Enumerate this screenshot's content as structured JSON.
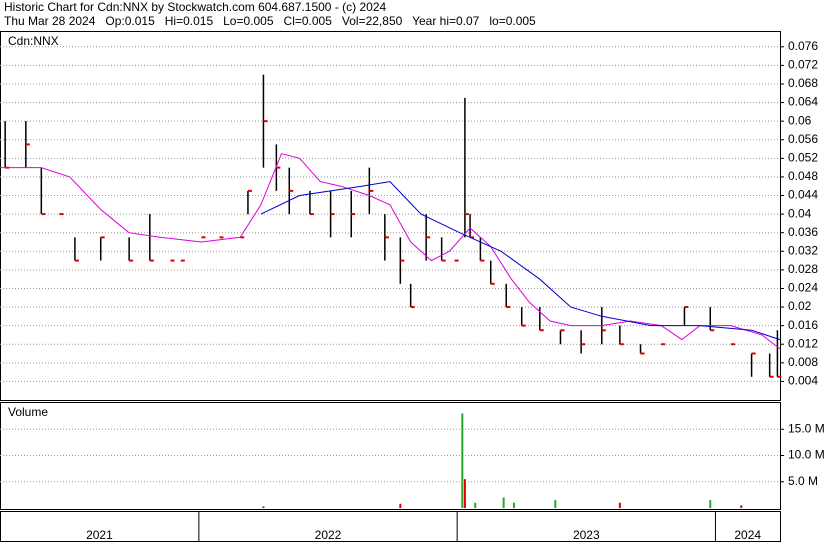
{
  "chart_data": {
    "type": "ohlc",
    "title": "Historic Chart for Cdn:NNX by Stockwatch.com 604.687.1500 - (c) 2024",
    "subtitle": "Thu Mar 28 2024   Op:0.015   Hi=0.015   Lo=0.005   Cl=0.005   Vol=22,850   Year hi=0.07   lo=0.005",
    "symbol_label": "Cdn:NNX",
    "volume_label": "Volume",
    "xlim": [
      2021.23,
      2024.25
    ],
    "x_years": [
      {
        "value": 2021,
        "label": "2021"
      },
      {
        "value": 2022,
        "label": "2022"
      },
      {
        "value": 2023,
        "label": "2023"
      },
      {
        "value": 2024,
        "label": "2024"
      }
    ],
    "ylim": [
      0,
      0.0794
    ],
    "yticks": [
      0.004,
      0.008,
      0.012,
      0.016,
      0.02,
      0.024,
      0.028,
      0.032,
      0.036,
      0.04,
      0.044,
      0.048,
      0.052,
      0.056,
      0.06,
      0.064,
      0.068,
      0.072,
      0.076
    ],
    "grid": true,
    "bar_color": "#000000",
    "close_color": "#dd0000",
    "x": [
      2021.25,
      2021.33,
      2021.39,
      2021.46,
      2021.52,
      2021.62,
      2021.73,
      2021.81,
      2021.89,
      2021.93,
      2022.01,
      2022.08,
      2022.16,
      2022.19,
      2022.25,
      2022.3,
      2022.35,
      2022.43,
      2022.51,
      2022.59,
      2022.66,
      2022.72,
      2022.78,
      2022.82,
      2022.88,
      2022.94,
      2022.99,
      2023.03,
      2023.05,
      2023.09,
      2023.13,
      2023.19,
      2023.25,
      2023.32,
      2023.4,
      2023.48,
      2023.56,
      2023.63,
      2023.71,
      2023.79,
      2023.88,
      2023.98,
      2024.06,
      2024.14,
      2024.21,
      2024.24
    ],
    "high": [
      0.06,
      0.06,
      0.05,
      0.04,
      0.035,
      0.035,
      0.035,
      0.04,
      0.03,
      0.03,
      0.035,
      0.035,
      0.035,
      0.045,
      0.07,
      0.055,
      0.05,
      0.045,
      0.045,
      0.045,
      0.05,
      0.04,
      0.035,
      0.025,
      0.04,
      0.035,
      0.03,
      0.065,
      0.04,
      0.035,
      0.03,
      0.025,
      0.02,
      0.02,
      0.015,
      0.015,
      0.02,
      0.016,
      0.012,
      0.012,
      0.02,
      0.02,
      0.012,
      0.01,
      0.01,
      0.015
    ],
    "low": [
      0.05,
      0.05,
      0.04,
      0.04,
      0.03,
      0.03,
      0.03,
      0.03,
      0.03,
      0.03,
      0.035,
      0.035,
      0.035,
      0.04,
      0.05,
      0.045,
      0.04,
      0.04,
      0.035,
      0.035,
      0.04,
      0.03,
      0.025,
      0.02,
      0.03,
      0.03,
      0.03,
      0.035,
      0.035,
      0.03,
      0.025,
      0.02,
      0.016,
      0.015,
      0.012,
      0.01,
      0.012,
      0.012,
      0.01,
      0.012,
      0.016,
      0.015,
      0.012,
      0.005,
      0.005,
      0.005
    ],
    "close": [
      0.05,
      0.055,
      0.04,
      0.04,
      0.03,
      0.035,
      0.03,
      0.03,
      0.03,
      0.03,
      0.035,
      0.035,
      0.035,
      0.045,
      0.06,
      0.05,
      0.045,
      0.04,
      0.04,
      0.04,
      0.045,
      0.035,
      0.03,
      0.02,
      0.035,
      0.03,
      0.03,
      0.04,
      0.035,
      0.03,
      0.025,
      0.02,
      0.016,
      0.015,
      0.015,
      0.012,
      0.015,
      0.012,
      0.01,
      0.012,
      0.02,
      0.015,
      0.012,
      0.01,
      0.005,
      0.005
    ],
    "moving_averages": [
      {
        "color": "#dd00dd",
        "x": [
          2021.23,
          2021.39,
          2021.5,
          2021.62,
          2021.73,
          2021.85,
          2022.01,
          2022.16,
          2022.24,
          2022.32,
          2022.39,
          2022.47,
          2022.55,
          2022.66,
          2022.74,
          2022.82,
          2022.9,
          2022.97,
          2023.05,
          2023.13,
          2023.21,
          2023.28,
          2023.36,
          2023.44,
          2023.56,
          2023.67,
          2023.79,
          2023.87,
          2023.94,
          2024.06,
          2024.18,
          2024.25
        ],
        "values": [
          0.05,
          0.05,
          0.048,
          0.041,
          0.036,
          0.035,
          0.034,
          0.035,
          0.042,
          0.053,
          0.052,
          0.047,
          0.046,
          0.044,
          0.042,
          0.034,
          0.03,
          0.032,
          0.037,
          0.033,
          0.026,
          0.021,
          0.017,
          0.016,
          0.016,
          0.017,
          0.016,
          0.013,
          0.016,
          0.016,
          0.014,
          0.011
        ]
      },
      {
        "color": "#0000cc",
        "x": [
          2022.24,
          2022.39,
          2022.63,
          2022.74,
          2022.86,
          2023.01,
          2023.17,
          2023.32,
          2023.44,
          2023.56,
          2023.75,
          2023.94,
          2024.14,
          2024.25
        ],
        "values": [
          0.04,
          0.044,
          0.046,
          0.047,
          0.04,
          0.036,
          0.032,
          0.026,
          0.02,
          0.018,
          0.016,
          0.016,
          0.015,
          0.013
        ]
      }
    ],
    "volume": {
      "ylim": [
        0,
        20
      ],
      "yticks": [
        {
          "value": 5,
          "label": "5.0 M"
        },
        {
          "value": 10,
          "label": "10.0 M"
        },
        {
          "value": 15,
          "label": "15.0 M"
        }
      ],
      "x": [
        2022.25,
        2022.78,
        2023.02,
        2023.03,
        2023.07,
        2023.18,
        2023.22,
        2023.38,
        2023.63,
        2023.98,
        2024.1
      ],
      "values": [
        0.3,
        0.8,
        18,
        5.5,
        1,
        2,
        1,
        1.5,
        1,
        1.5,
        0.5
      ],
      "colors": [
        "#dd0000",
        "#dd0000",
        "#22aa22",
        "#dd0000",
        "#22aa22",
        "#22aa22",
        "#22aa22",
        "#22aa22",
        "#dd0000",
        "#22aa22",
        "#dd0000"
      ]
    }
  }
}
